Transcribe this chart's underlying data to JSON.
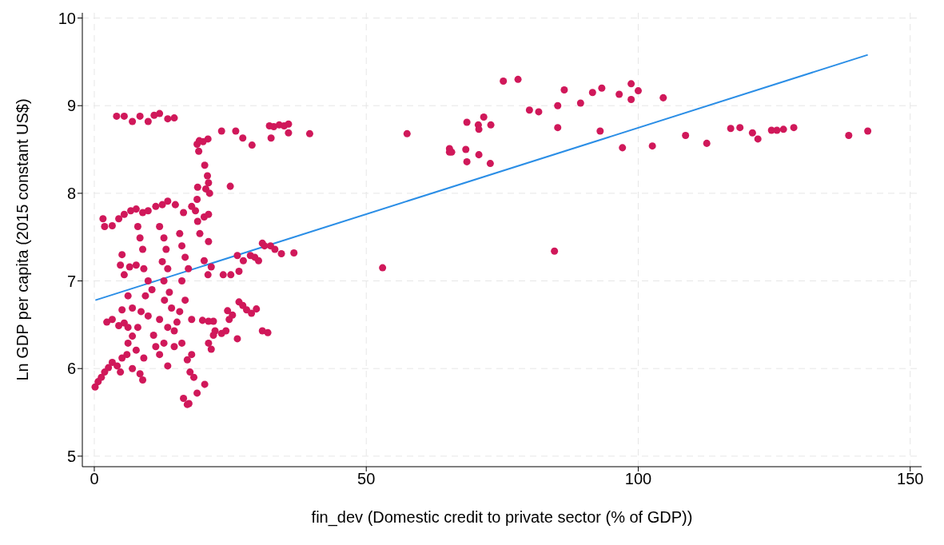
{
  "chart_data": {
    "type": "scatter",
    "xlabel": "fin_dev (Domestic credit to private sector (% of GDP))",
    "ylabel": "Ln GDP per capita (2015 constant US$)",
    "xlim": [
      -2.2,
      152.1
    ],
    "ylim": [
      4.88,
      10.06
    ],
    "xticks": [
      0,
      50,
      100,
      150
    ],
    "yticks": [
      5,
      6,
      7,
      8,
      9,
      10
    ],
    "grid": true,
    "marker": "circle",
    "series": [
      {
        "color": "#d0185a",
        "x": [
          57.5,
          53.0,
          75.2,
          77.9,
          68.5,
          70.6,
          71.6,
          72.9,
          70.7,
          65.3,
          65.3,
          65.7,
          68.3,
          68.5,
          70.7,
          72.8,
          80,
          81.7,
          85.2,
          86.4,
          85.2,
          89.4,
          91.6,
          93.3,
          96.5,
          98.7,
          98.7,
          100,
          104.6,
          93,
          97.1,
          102.6,
          108.7,
          112.6,
          117,
          118.7,
          121,
          122,
          124.5,
          125.5,
          126.7,
          128.6,
          138.7,
          142.2,
          84.6,
          39.6,
          32.2,
          33,
          34,
          34.9,
          35.7,
          35.7,
          32.5,
          26,
          27.3,
          29,
          23.4,
          20.9,
          18.9,
          19.2,
          19.3,
          20,
          25,
          20.3,
          20.8,
          21,
          20.5,
          19,
          21.2,
          18.9,
          18.6,
          19,
          20.2,
          21,
          21,
          19.4,
          20.2,
          21.5,
          20.9,
          26.3,
          27.4,
          28.7,
          29.5,
          30.9,
          31.3,
          32.4,
          33.2,
          34.4,
          36.7,
          23.7,
          25.1,
          26.6,
          26.6,
          27.3,
          28,
          28.9,
          29.8,
          24.5,
          25.4,
          24.8,
          26.3,
          21.9,
          21,
          19.9,
          22.2,
          23.4,
          24.2,
          21,
          21.5,
          21.9,
          30.9,
          31.9,
          30.2,
          4.1,
          5.5,
          7,
          8.4,
          9.9,
          11,
          12,
          13.5,
          14.7,
          1.6,
          1.9,
          3.3,
          4.5,
          5.5,
          6.7,
          7.7,
          8.9,
          9.9,
          11.3,
          12.5,
          13.5,
          14.9,
          16.4,
          17.9,
          12,
          12.8,
          13.2,
          12.5,
          13.5,
          12.8,
          13.8,
          12.9,
          14.2,
          12,
          13.5,
          12.8,
          12,
          8,
          8.4,
          8.9,
          7.7,
          9.1,
          9.9,
          9.4,
          8.6,
          9.9,
          8,
          7,
          6.2,
          7.7,
          9.1,
          8.4,
          8.9,
          15.7,
          16.1,
          16.7,
          17.3,
          16.1,
          16.7,
          15.7,
          15.2,
          17.9,
          14.7,
          16.1,
          17.9,
          17.1,
          17.6,
          18.3,
          18.9,
          17.4,
          17.1,
          16.4,
          20.3,
          0.15,
          0.7,
          1.3,
          1.9,
          2.6,
          3.3,
          4.2,
          5.1,
          6,
          4.8,
          7,
          2.3,
          3.3,
          4.5,
          5.5,
          6.2,
          4.8,
          6.5,
          5.5,
          5.1,
          6.2,
          5.1,
          7,
          10.6,
          10.9,
          11.3,
          13.5,
          14.7
        ],
        "values": [
          8.68,
          7.15,
          9.28,
          9.3,
          8.81,
          8.78,
          8.87,
          8.78,
          8.73,
          8.51,
          8.47,
          8.47,
          8.5,
          8.36,
          8.44,
          8.34,
          8.95,
          8.93,
          8.75,
          9.18,
          9.0,
          9.03,
          9.15,
          9.2,
          9.13,
          9.25,
          9.07,
          9.17,
          9.09,
          8.71,
          8.52,
          8.54,
          8.66,
          8.57,
          8.74,
          8.75,
          8.69,
          8.62,
          8.72,
          8.72,
          8.73,
          8.75,
          8.66,
          8.71,
          7.34,
          8.68,
          8.77,
          8.76,
          8.78,
          8.77,
          8.79,
          8.69,
          8.63,
          8.71,
          8.63,
          8.55,
          8.71,
          8.62,
          8.56,
          8.48,
          8.6,
          8.59,
          8.08,
          8.32,
          8.2,
          8.12,
          8.05,
          8.07,
          8.0,
          7.93,
          7.8,
          7.68,
          7.73,
          7.76,
          7.45,
          7.54,
          7.23,
          7.16,
          7.07,
          7.29,
          7.23,
          7.29,
          7.27,
          7.43,
          7.4,
          7.4,
          7.36,
          7.31,
          7.32,
          7.07,
          7.07,
          7.11,
          6.76,
          6.72,
          6.67,
          6.63,
          6.68,
          6.66,
          6.61,
          6.56,
          6.34,
          6.54,
          6.54,
          6.55,
          6.43,
          6.4,
          6.43,
          6.29,
          6.22,
          6.38,
          6.43,
          6.41,
          7.23,
          8.88,
          8.88,
          8.82,
          8.88,
          8.82,
          8.89,
          8.91,
          8.85,
          8.86,
          7.71,
          7.62,
          7.63,
          7.71,
          7.76,
          7.8,
          7.82,
          7.78,
          7.8,
          7.85,
          7.87,
          7.91,
          7.87,
          7.78,
          7.85,
          7.62,
          7.49,
          7.36,
          7.22,
          7.14,
          7.0,
          6.87,
          6.78,
          6.69,
          6.56,
          6.47,
          6.29,
          6.16,
          7.62,
          7.49,
          7.36,
          7.18,
          7.14,
          7.0,
          6.83,
          6.65,
          6.6,
          6.47,
          6.37,
          6.29,
          6.21,
          6.12,
          5.94,
          5.87,
          7.54,
          7.4,
          7.27,
          7.14,
          7.0,
          6.78,
          6.65,
          6.53,
          6.56,
          6.43,
          6.29,
          6.16,
          6.1,
          5.96,
          5.9,
          5.72,
          5.6,
          5.59,
          5.66,
          5.82,
          5.79,
          5.85,
          5.9,
          5.96,
          6.01,
          6.07,
          6.03,
          6.12,
          6.16,
          5.96,
          6.0,
          6.53,
          6.56,
          6.49,
          6.52,
          6.47,
          7.18,
          7.16,
          7.07,
          7.3,
          6.83,
          6.67,
          6.69,
          6.9,
          6.38,
          6.25,
          6.03,
          6.25
        ]
      },
      {
        "type": "line",
        "color": "#2b8ee6",
        "marker": "none",
        "x": [
          0.2,
          142.2
        ],
        "values": [
          6.78,
          9.58
        ]
      }
    ]
  }
}
